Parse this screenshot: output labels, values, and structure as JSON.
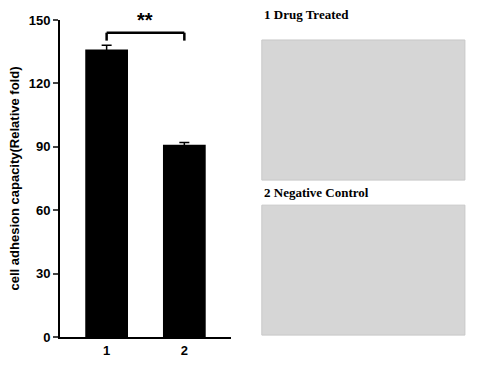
{
  "chart_data": {
    "type": "bar",
    "y_label": "cell adhesion capacity(Relative fold)",
    "categories": [
      "1",
      "2"
    ],
    "values": [
      136,
      91
    ],
    "errors": [
      2,
      1
    ],
    "color": "#000000",
    "ylim": [
      0,
      150
    ],
    "yticks": [
      0,
      30,
      60,
      90,
      120,
      150
    ],
    "grid": false,
    "annotations": [
      {
        "text": "**",
        "between": [
          0,
          1
        ]
      }
    ],
    "image_panels": [
      "1 Drug Treated",
      "2 Negative Control"
    ]
  }
}
